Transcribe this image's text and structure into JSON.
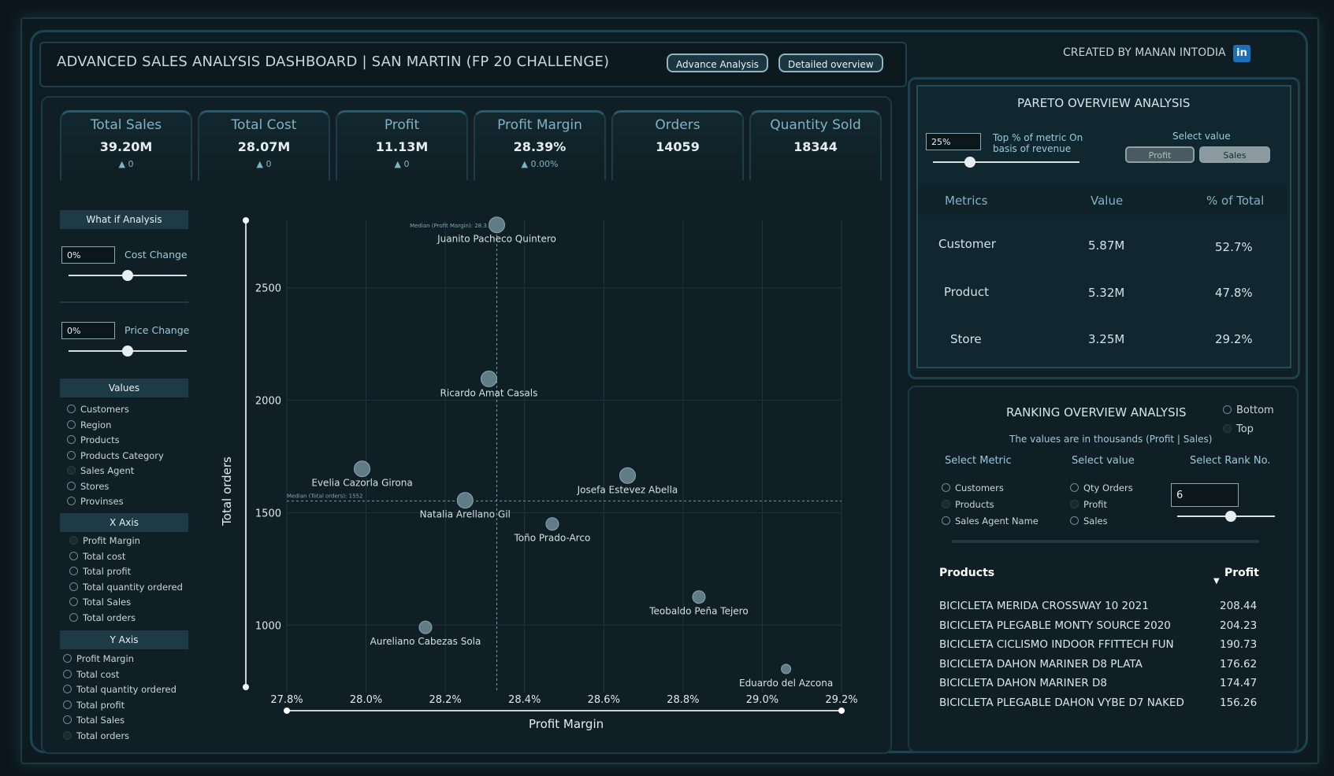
{
  "header": {
    "title": "ADVANCED SALES ANALYSIS DASHBOARD | SAN MARTIN (FP 20 CHALLENGE)",
    "btn_advance": "Advance Analysis",
    "btn_detailed": "Detailed overview",
    "creator": "CREATED BY MANAN INTODIA",
    "linkedin": "in"
  },
  "kpis": [
    {
      "title": "Total Sales",
      "value": "39.20M",
      "delta": "▲ 0"
    },
    {
      "title": "Total Cost",
      "value": "28.07M",
      "delta": "▲ 0"
    },
    {
      "title": "Profit",
      "value": "11.13M",
      "delta": "▲ 0"
    },
    {
      "title": "Profit Margin",
      "value": "28.39%",
      "delta": "▲ 0.00%"
    },
    {
      "title": "Orders",
      "value": "14059",
      "delta": ""
    },
    {
      "title": "Quantity Sold",
      "value": "18344",
      "delta": ""
    }
  ],
  "whatif": {
    "title": "What if Analysis",
    "cost_value": "0%",
    "cost_label": "Cost Change",
    "cost_level": 0.5,
    "price_value": "0%",
    "price_label": "Price Change",
    "price_level": 0.5
  },
  "values": {
    "title": "Values",
    "options": [
      "Customers",
      "Region",
      "Products",
      "Products Category",
      "Sales Agent",
      "Stores",
      "Provinses"
    ],
    "selected": "Sales Agent"
  },
  "xaxis": {
    "title": "X Axis",
    "options": [
      "Profit Margin",
      "Total cost",
      "Total profit",
      "Total quantity ordered",
      "Total Sales",
      "Total orders"
    ],
    "selected": "Profit Margin"
  },
  "yaxis": {
    "title": "Y Axis",
    "options": [
      "Profit Margin",
      "Total cost",
      "Total quantity ordered",
      "Total profit",
      "Total Sales",
      "Total orders"
    ],
    "selected": "Total orders"
  },
  "chart_data": {
    "type": "scatter",
    "xlabel": "Profit Margin",
    "ylabel": "Total orders",
    "xticks": [
      "27.8%",
      "28.0%",
      "28.2%",
      "28.4%",
      "28.6%",
      "28.8%",
      "29.0%",
      "29.2%"
    ],
    "yticks": [
      "1000",
      "1500",
      "2000",
      "2500"
    ],
    "xlim": [
      27.8,
      29.2
    ],
    "ylim": [
      700,
      2800
    ],
    "median_x_label": "Median (Profit Margin): 28.3...",
    "median_y_label": "Median (Total orders): 1552",
    "median_x": 28.33,
    "median_y": 1552,
    "points": [
      {
        "name": "Juanito Pacheco Quintero",
        "x": 28.33,
        "y": 2780
      },
      {
        "name": "Ricardo Amat Casals",
        "x": 28.31,
        "y": 2095
      },
      {
        "name": "Evelia Cazorla Girona",
        "x": 27.99,
        "y": 1695
      },
      {
        "name": "Josefa Estevez Abella",
        "x": 28.66,
        "y": 1665
      },
      {
        "name": "Natalia Arellano Gil",
        "x": 28.25,
        "y": 1555
      },
      {
        "name": "Toño Prado-Arco",
        "x": 28.47,
        "y": 1450
      },
      {
        "name": "Teobaldo Peña Tejero",
        "x": 28.84,
        "y": 1125
      },
      {
        "name": "Aureliano Cabezas Sola",
        "x": 28.15,
        "y": 990
      },
      {
        "name": "Eduardo del Azcona",
        "x": 29.06,
        "y": 805
      }
    ]
  },
  "pareto": {
    "title": "PARETO OVERVIEW ANALYSIS",
    "top_value": "25%",
    "top_label": "Top % of metric On basis of revenue",
    "slider_level": 0.25,
    "select_label": "Select value",
    "btn_profit": "Profit",
    "btn_sales": "Sales",
    "headers": [
      "Metrics",
      "Value",
      "% of Total"
    ],
    "rows": [
      {
        "metric": "Customer",
        "value": "5.87M",
        "pct": "52.7%"
      },
      {
        "metric": "Product",
        "value": "5.32M",
        "pct": "47.8%"
      },
      {
        "metric": "Store",
        "value": "3.25M",
        "pct": "29.2%"
      }
    ]
  },
  "ranking": {
    "title": "RANKING OVERVIEW ANALYSIS",
    "bottom": "Bottom",
    "top": "Top",
    "note": "The values are in thousands (Profit | Sales)",
    "select_metric": "Select Metric",
    "select_value": "Select value",
    "select_rank": "Select Rank No.",
    "metric_options": [
      "Customers",
      "Products",
      "Sales Agent Name"
    ],
    "value_options": [
      "Qty Orders",
      "Profit",
      "Sales"
    ],
    "rank_value": "6",
    "rank_level": 0.55,
    "col_products": "Products",
    "col_profit": "Profit",
    "rows": [
      {
        "name": "BICICLETA MERIDA CROSSWAY 10 2021",
        "value": "208.44"
      },
      {
        "name": "BICICLETA PLEGABLE MONTY SOURCE 2020",
        "value": "204.23"
      },
      {
        "name": "BICICLETA CICLISMO INDOOR FFITTECH FUN",
        "value": "190.73"
      },
      {
        "name": "BICICLETA DAHON MARINER D8 PLATA",
        "value": "176.62"
      },
      {
        "name": "BICICLETA DAHON MARINER D8",
        "value": "174.47"
      },
      {
        "name": "BICICLETA PLEGABLE DAHON VYBE D7 NAKED",
        "value": "156.26"
      }
    ]
  }
}
